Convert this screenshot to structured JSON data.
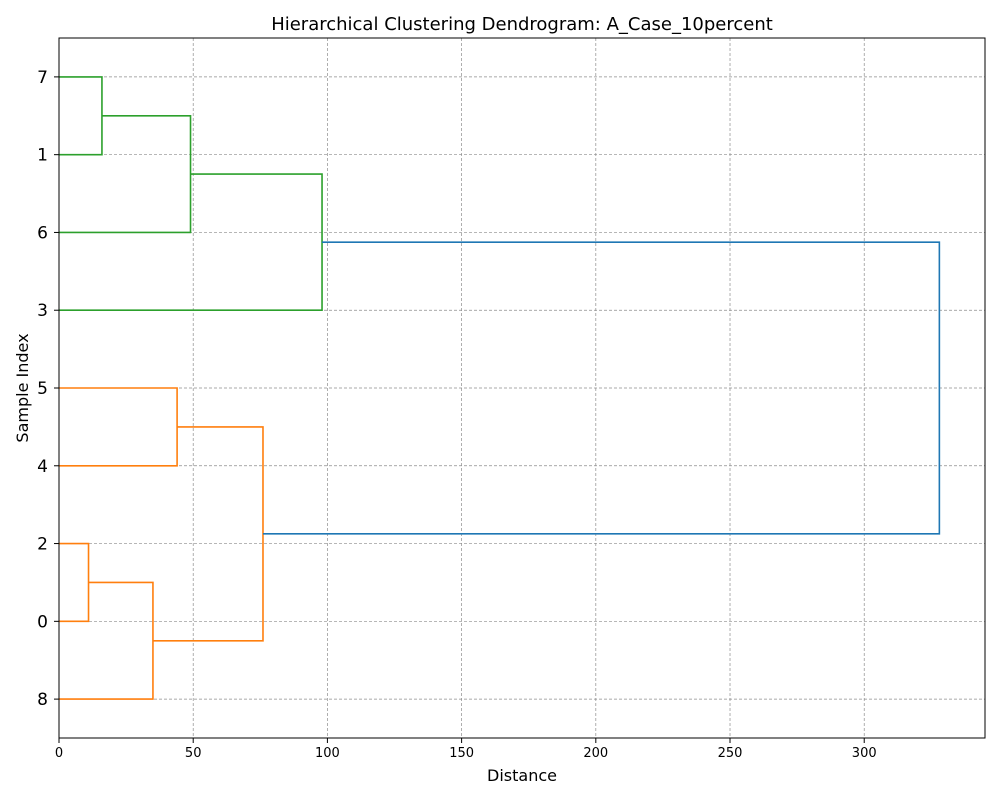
{
  "chart_data": {
    "type": "dendrogram",
    "orientation": "horizontal",
    "title": "Hierarchical Clustering Dendrogram: A_Case_10percent",
    "xlabel": "Distance",
    "ylabel": "Sample Index",
    "xlim": [
      0,
      345
    ],
    "xticks": [
      0,
      50,
      100,
      150,
      200,
      250,
      300
    ],
    "leaf_order_bottom_to_top": [
      "8",
      "0",
      "2",
      "4",
      "5",
      "3",
      "6",
      "1",
      "7"
    ],
    "grid": true,
    "colors": {
      "cluster_orange": "#ff7f0e",
      "cluster_green": "#2ca02c",
      "root_link": "#1f77b4",
      "grid": "#8c8c8c"
    },
    "merges": [
      {
        "id": "A",
        "children": [
          "0",
          "2"
        ],
        "distance": 11,
        "color": "cluster_orange"
      },
      {
        "id": "B",
        "children": [
          "8",
          "A"
        ],
        "distance": 35,
        "color": "cluster_orange"
      },
      {
        "id": "C",
        "children": [
          "4",
          "5"
        ],
        "distance": 44,
        "color": "cluster_orange"
      },
      {
        "id": "D",
        "children": [
          "B",
          "C"
        ],
        "distance": 76,
        "color": "cluster_orange"
      },
      {
        "id": "E",
        "children": [
          "1",
          "7"
        ],
        "distance": 16,
        "color": "cluster_green"
      },
      {
        "id": "F",
        "children": [
          "6",
          "E"
        ],
        "distance": 49,
        "color": "cluster_green"
      },
      {
        "id": "G",
        "children": [
          "3",
          "F"
        ],
        "distance": 98,
        "color": "cluster_green"
      },
      {
        "id": "H",
        "children": [
          "D",
          "G"
        ],
        "distance": 328,
        "color": "root_link"
      }
    ]
  }
}
